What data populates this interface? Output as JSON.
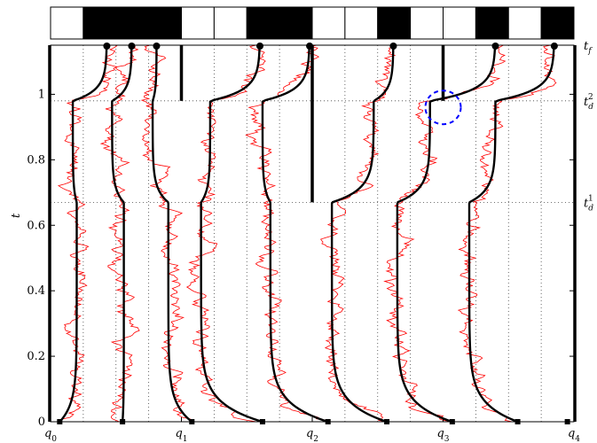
{
  "chart_data": {
    "type": "line",
    "title": "",
    "ylabel": "t",
    "xlabel": "",
    "xlim": [
      0,
      4
    ],
    "ylim": [
      0,
      1.15
    ],
    "grid": true,
    "x_tick_labels": [
      "q0",
      "q1",
      "q2",
      "q3",
      "q4"
    ],
    "x_tick_values": [
      0,
      1,
      2,
      3,
      4
    ],
    "y_ticks": [
      0,
      0.2,
      0.4,
      0.6,
      0.8,
      1
    ],
    "y_tick_labels": [
      "0",
      "0.2",
      "0.4",
      "0.6",
      "0.8",
      "1"
    ],
    "right_annotations": [
      {
        "label": "t_f",
        "base": "t",
        "sub": "f",
        "sup": "",
        "y": 1.15
      },
      {
        "label": "t_d^2",
        "base": "t",
        "sub": "d",
        "sup": "2",
        "y": 0.98
      },
      {
        "label": "t_d^1",
        "base": "t",
        "sub": "d",
        "sup": "1",
        "y": 0.67
      }
    ],
    "event_times": {
      "t_d1": 0.67,
      "t_d2": 0.98,
      "t_f": 1.15
    },
    "top_bar_pattern": [
      0,
      1,
      1,
      1,
      0,
      0,
      1,
      1,
      0,
      0,
      1,
      0,
      0,
      1,
      0,
      1
    ],
    "colors": {
      "mean_path": "#000000",
      "sample_path": "#ff0000",
      "highlight": "#0000ff"
    },
    "vertical_dotted_x": [
      0.25,
      0.5,
      0.75,
      1.25,
      1.5,
      1.75,
      2.25,
      2.5,
      2.75,
      3.25,
      3.5,
      3.75
    ],
    "thick_bars": [
      {
        "x": 1.0,
        "t_start": 0.98,
        "t_end": 1.15
      },
      {
        "x": 2.0,
        "t_start": 0.67,
        "t_end": 1.15
      },
      {
        "x": 3.0,
        "t_start": 0.98,
        "t_end": 1.15
      },
      {
        "x": 0.0,
        "t_start": 0.0,
        "t_end": 1.15
      },
      {
        "x": 4.0,
        "t_start": 0.0,
        "t_end": 1.15
      }
    ],
    "start_positions": [
      0.07,
      0.55,
      1.08,
      1.62,
      2.12,
      2.57,
      3.07,
      3.57,
      3.95
    ],
    "final_positions": [
      0.43,
      0.62,
      0.81,
      1.6,
      1.98,
      2.62,
      3.4,
      3.85
    ],
    "series": [
      {
        "start_x": 0.07,
        "plateau1_x": 0.2,
        "mid_x": 0.17,
        "end_x": 0.43,
        "stage2_end_x": 0.17
      },
      {
        "start_x": 0.55,
        "plateau1_x": 0.56,
        "mid_x": 0.47,
        "end_x": 0.62,
        "stage2_end_x": 0.47
      },
      {
        "start_x": 1.08,
        "plateau1_x": 0.9,
        "mid_x": 0.78,
        "end_x": 0.81,
        "stage2_end_x": 0.78
      },
      {
        "start_x": 1.62,
        "plateau1_x": 1.15,
        "mid_x": 1.22,
        "end_x": 1.6,
        "stage2_end_x": 1.22
      },
      {
        "start_x": 2.12,
        "plateau1_x": 1.68,
        "mid_x": 1.62,
        "end_x": 1.98,
        "stage2_end_x": 1.62
      },
      {
        "start_x": 2.57,
        "plateau1_x": 2.15,
        "mid_x": 2.13,
        "end_x": 2.62,
        "stage2_end_x": 2.47
      },
      {
        "start_x": 3.07,
        "plateau1_x": 2.65,
        "mid_x": 2.55,
        "end_x": 3.4,
        "stage2_end_x": 2.9
      },
      {
        "start_x": 3.57,
        "plateau1_x": 3.2,
        "mid_x": 3.05,
        "end_x": 3.85,
        "stage2_end_x": 3.4
      }
    ]
  }
}
